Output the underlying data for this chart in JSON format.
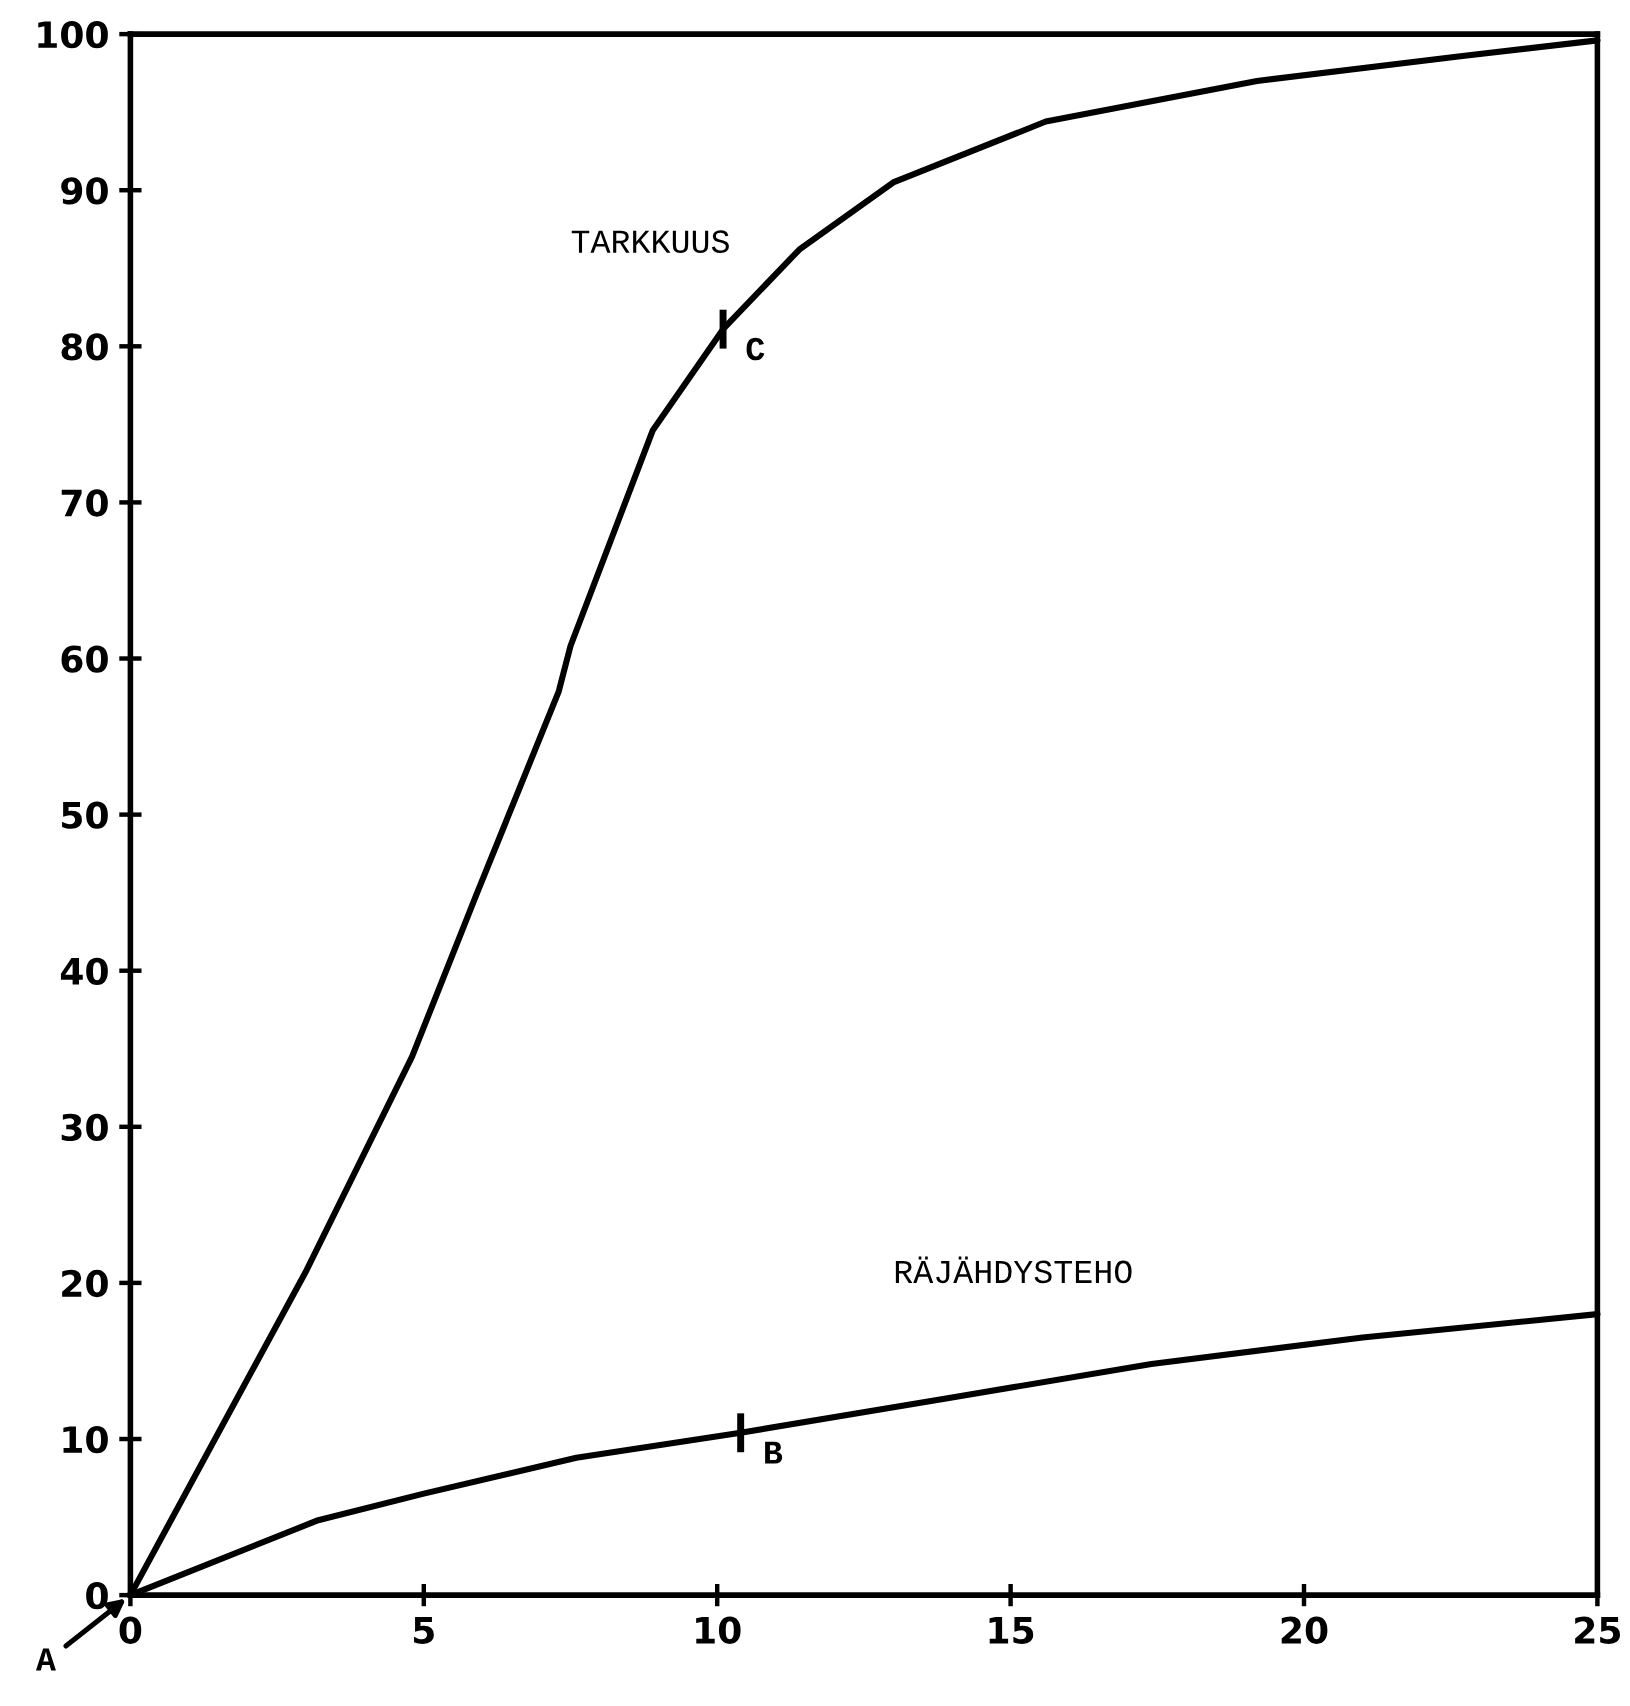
{
  "chart_data": {
    "type": "line",
    "xlim": [
      0,
      25
    ],
    "ylim": [
      0,
      100
    ],
    "xticks": [
      0,
      5,
      10,
      15,
      20,
      25
    ],
    "yticks": [
      0,
      10,
      20,
      30,
      40,
      50,
      60,
      70,
      80,
      90,
      100
    ],
    "grid": false,
    "legend": false,
    "marker": "none",
    "line_style": "solid",
    "series": [
      {
        "name": "TARKKUUS",
        "color": "#000000",
        "x": [
          0,
          3.0,
          4.8,
          5.9,
          7.3,
          7.5,
          8.9,
          10.1,
          11.4,
          13.0,
          15.6,
          19.2,
          22.7,
          25
        ],
        "values": [
          0,
          20.8,
          34.5,
          44.9,
          57.9,
          60.8,
          74.6,
          81.1,
          86.2,
          90.5,
          94.4,
          97.0,
          98.6,
          99.6
        ]
      },
      {
        "name": "RÄJÄHDYSTEHO",
        "color": "#000000",
        "x": [
          0,
          3.2,
          5.0,
          7.6,
          10.4,
          13.9,
          17.4,
          21.0,
          25
        ],
        "values": [
          0,
          4.8,
          6.5,
          8.8,
          10.4,
          12.6,
          14.8,
          16.5,
          18.0
        ]
      }
    ],
    "annotations": [
      {
        "text": "A",
        "x": 0,
        "y": 0
      },
      {
        "text": "B",
        "x": 10.4,
        "y": 10.4
      },
      {
        "text": "C",
        "x": 10.1,
        "y": 81.1
      }
    ]
  }
}
